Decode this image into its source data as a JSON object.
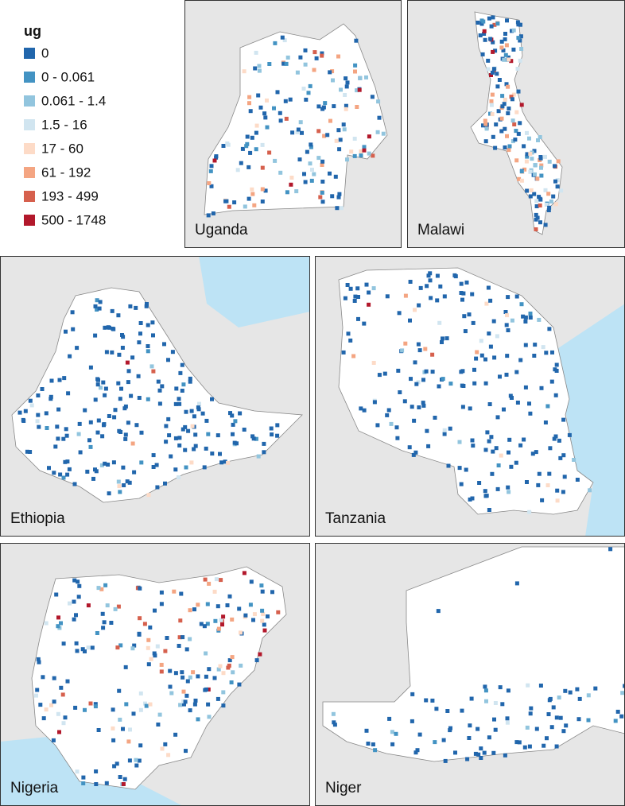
{
  "legend": {
    "title": "ug",
    "items": [
      {
        "label": "0",
        "color": "#2166ac"
      },
      {
        "label": "0 - 0.061",
        "color": "#4393c3"
      },
      {
        "label": "0.061 - 1.4",
        "color": "#92c5de"
      },
      {
        "label": "1.5 - 16",
        "color": "#d1e5f0"
      },
      {
        "label": "17 - 60",
        "color": "#fddbc7"
      },
      {
        "label": "61 - 192",
        "color": "#f4a582"
      },
      {
        "label": "193 - 499",
        "color": "#d6604d"
      },
      {
        "label": "500 - 1748",
        "color": "#b2182b"
      }
    ]
  },
  "panels": [
    {
      "name": "Uganda"
    },
    {
      "name": "Malawi"
    },
    {
      "name": "Ethiopia"
    },
    {
      "name": "Tanzania"
    },
    {
      "name": "Nigeria"
    },
    {
      "name": "Niger"
    }
  ]
}
